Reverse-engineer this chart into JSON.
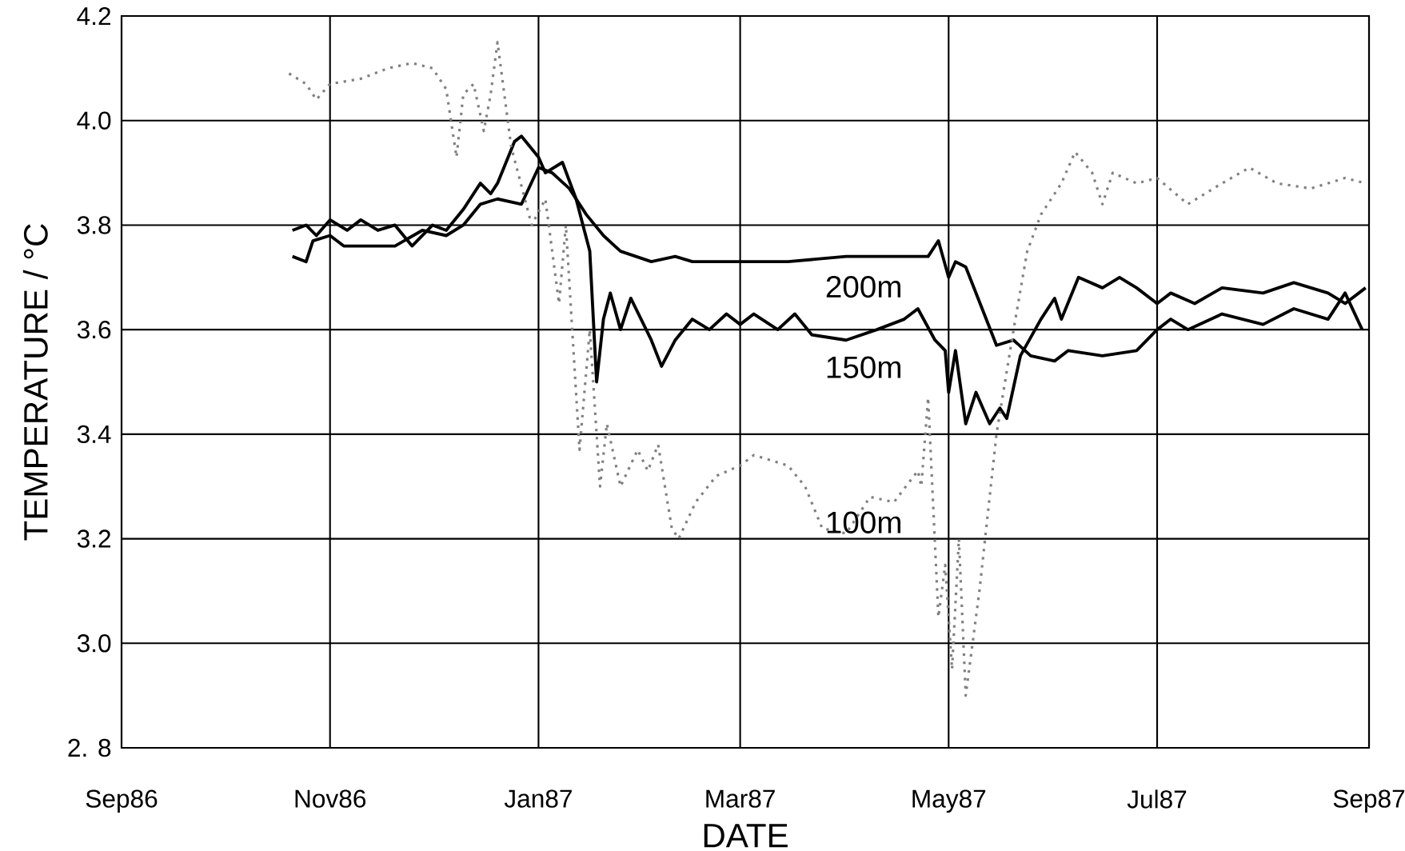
{
  "chart_data": {
    "type": "line",
    "xlabel": "DATE",
    "ylabel": "TEMPERATURE  /  °C",
    "xlim": [
      "1986-09-01",
      "1987-09-01"
    ],
    "xticks": [
      {
        "value": "1986-09-01",
        "label": "Sep86"
      },
      {
        "value": "1986-11-01",
        "label": "Nov86"
      },
      {
        "value": "1987-01-01",
        "label": "Jan87"
      },
      {
        "value": "1987-03-01",
        "label": "Mar87"
      },
      {
        "value": "1987-05-01",
        "label": "May87"
      },
      {
        "value": "1987-07-01",
        "label": "Jul87"
      },
      {
        "value": "1987-09-01",
        "label": "Sep87"
      }
    ],
    "ylim": [
      2.8,
      4.2
    ],
    "yticks": [
      {
        "value": 2.8,
        "label": "2. 8"
      },
      {
        "value": 3.0,
        "label": "3.0"
      },
      {
        "value": 3.2,
        "label": "3.2"
      },
      {
        "value": 3.4,
        "label": "3.4"
      },
      {
        "value": 3.6,
        "label": "3.6"
      },
      {
        "value": 3.8,
        "label": "3.8"
      },
      {
        "value": 4.0,
        "label": "4.0"
      },
      {
        "value": 4.2,
        "label": "4.2"
      }
    ],
    "grid": true,
    "series": [
      {
        "color": "#000000",
        "line_style": "solid",
        "x": [
          "1986-10-21",
          "1986-10-25",
          "1986-10-27",
          "1986-11-01",
          "1986-11-05",
          "1986-11-15",
          "1986-11-20",
          "1986-11-28",
          "1986-12-05",
          "1986-12-10",
          "1986-12-15",
          "1986-12-20",
          "1986-12-27",
          "1987-01-01",
          "1987-01-05",
          "1987-01-10",
          "1987-01-15",
          "1987-01-20",
          "1987-01-25",
          "1987-02-03",
          "1987-02-10",
          "1987-02-15",
          "1987-03-01",
          "1987-03-15",
          "1987-04-01",
          "1987-04-15",
          "1987-04-25",
          "1987-04-28",
          "1987-05-01",
          "1987-05-03",
          "1987-05-06",
          "1987-05-12",
          "1987-05-15",
          "1987-05-20",
          "1987-05-25",
          "1987-06-01",
          "1987-06-05",
          "1987-06-15",
          "1987-06-25",
          "1987-07-01",
          "1987-07-05",
          "1987-07-10",
          "1987-07-20",
          "1987-08-01",
          "1987-08-10",
          "1987-08-20",
          "1987-08-25",
          "1987-08-30"
        ],
        "values": [
          3.74,
          3.73,
          3.77,
          3.78,
          3.76,
          3.76,
          3.76,
          3.79,
          3.78,
          3.8,
          3.84,
          3.85,
          3.84,
          3.91,
          3.9,
          3.87,
          3.82,
          3.78,
          3.75,
          3.73,
          3.74,
          3.73,
          3.73,
          3.73,
          3.74,
          3.74,
          3.74,
          3.77,
          3.7,
          3.73,
          3.72,
          3.62,
          3.57,
          3.58,
          3.55,
          3.54,
          3.56,
          3.55,
          3.56,
          3.6,
          3.62,
          3.6,
          3.63,
          3.61,
          3.64,
          3.62,
          3.67,
          3.6
        ]
      },
      {
        "color": "#000000",
        "line_style": "solid",
        "x": [
          "1986-10-21",
          "1986-10-25",
          "1986-10-28",
          "1986-11-01",
          "1986-11-06",
          "1986-11-10",
          "1986-11-15",
          "1986-11-20",
          "1986-11-25",
          "1986-12-01",
          "1986-12-05",
          "1986-12-10",
          "1986-12-15",
          "1986-12-18",
          "1986-12-20",
          "1986-12-25",
          "1986-12-27",
          "1987-01-01",
          "1987-01-03",
          "1987-01-08",
          "1987-01-12",
          "1987-01-14",
          "1987-01-16",
          "1987-01-18",
          "1987-01-20",
          "1987-01-22",
          "1987-01-25",
          "1987-01-28",
          "1987-02-03",
          "1987-02-06",
          "1987-02-10",
          "1987-02-15",
          "1987-02-20",
          "1987-02-25",
          "1987-03-01",
          "1987-03-05",
          "1987-03-12",
          "1987-03-17",
          "1987-03-22",
          "1987-04-01",
          "1987-04-10",
          "1987-04-18",
          "1987-04-22",
          "1987-04-27",
          "1987-04-30",
          "1987-05-01",
          "1987-05-03",
          "1987-05-06",
          "1987-05-09",
          "1987-05-13",
          "1987-05-16",
          "1987-05-18",
          "1987-05-22",
          "1987-05-28",
          "1987-06-01",
          "1987-06-03",
          "1987-06-08",
          "1987-06-15",
          "1987-06-20",
          "1987-06-25",
          "1987-07-01",
          "1987-07-05",
          "1987-07-12",
          "1987-07-20",
          "1987-08-01",
          "1987-08-10",
          "1987-08-20",
          "1987-08-25",
          "1987-08-31"
        ],
        "values": [
          3.79,
          3.8,
          3.78,
          3.81,
          3.79,
          3.81,
          3.79,
          3.8,
          3.76,
          3.8,
          3.79,
          3.83,
          3.88,
          3.86,
          3.88,
          3.96,
          3.97,
          3.93,
          3.9,
          3.92,
          3.85,
          3.8,
          3.75,
          3.5,
          3.62,
          3.67,
          3.6,
          3.66,
          3.58,
          3.53,
          3.58,
          3.62,
          3.6,
          3.63,
          3.61,
          3.63,
          3.6,
          3.63,
          3.59,
          3.58,
          3.6,
          3.62,
          3.64,
          3.58,
          3.56,
          3.48,
          3.56,
          3.42,
          3.48,
          3.42,
          3.45,
          3.43,
          3.55,
          3.62,
          3.66,
          3.62,
          3.7,
          3.68,
          3.7,
          3.68,
          3.65,
          3.67,
          3.65,
          3.68,
          3.67,
          3.69,
          3.67,
          3.65,
          3.68
        ]
      },
      {
        "color": "#808080",
        "line_style": "dotted",
        "x": [
          "1986-10-20",
          "1986-10-25",
          "1986-10-28",
          "1986-11-01",
          "1986-11-10",
          "1986-11-18",
          "1986-11-25",
          "1986-12-01",
          "1986-12-05",
          "1986-12-08",
          "1986-12-10",
          "1986-12-13",
          "1986-12-16",
          "1986-12-18",
          "1986-12-20",
          "1986-12-24",
          "1986-12-30",
          "1987-01-03",
          "1987-01-07",
          "1987-01-09",
          "1987-01-13",
          "1987-01-16",
          "1987-01-19",
          "1987-01-21",
          "1987-01-25",
          "1987-01-30",
          "1987-02-02",
          "1987-02-05",
          "1987-02-09",
          "1987-02-11",
          "1987-02-16",
          "1987-02-22",
          "1987-03-01",
          "1987-03-05",
          "1987-03-15",
          "1987-03-20",
          "1987-03-25",
          "1987-04-01",
          "1987-04-08",
          "1987-04-15",
          "1987-04-22",
          "1987-04-23",
          "1987-04-25",
          "1987-04-28",
          "1987-04-30",
          "1987-05-02",
          "1987-05-04",
          "1987-05-06",
          "1987-05-10",
          "1987-05-15",
          "1987-05-20",
          "1987-05-24",
          "1987-05-28",
          "1987-06-03",
          "1987-06-07",
          "1987-06-12",
          "1987-06-15",
          "1987-06-18",
          "1987-06-25",
          "1987-07-01",
          "1987-07-10",
          "1987-07-20",
          "1987-07-28",
          "1987-08-05",
          "1987-08-15",
          "1987-08-25",
          "1987-08-31"
        ],
        "values": [
          4.09,
          4.07,
          4.04,
          4.07,
          4.08,
          4.1,
          4.11,
          4.1,
          4.06,
          3.93,
          4.05,
          4.07,
          3.98,
          4.05,
          4.15,
          3.95,
          3.8,
          3.85,
          3.65,
          3.8,
          3.37,
          3.6,
          3.3,
          3.42,
          3.3,
          3.37,
          3.33,
          3.38,
          3.22,
          3.2,
          3.27,
          3.32,
          3.34,
          3.36,
          3.34,
          3.3,
          3.22,
          3.21,
          3.28,
          3.27,
          3.33,
          3.3,
          3.47,
          3.05,
          3.15,
          2.95,
          3.2,
          2.9,
          3.1,
          3.4,
          3.6,
          3.75,
          3.82,
          3.88,
          3.94,
          3.9,
          3.84,
          3.9,
          3.88,
          3.89,
          3.84,
          3.88,
          3.91,
          3.88,
          3.87,
          3.89,
          3.88
        ]
      }
    ],
    "annotations": [
      "200m",
      "150m",
      "100m"
    ]
  }
}
